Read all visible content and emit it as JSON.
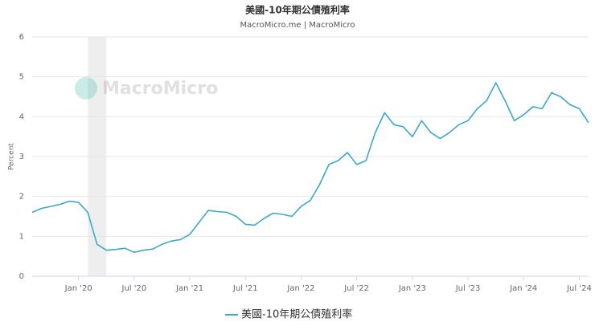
{
  "chart_data": {
    "type": "line",
    "title": "美國-10年期公債殖利率",
    "subtitle": "MacroMicro.me | MacroMicro",
    "watermark": "MacroMicro",
    "y_label": "Percent",
    "x": [
      "2019-08",
      "2019-09",
      "2019-10",
      "2019-11",
      "2019-12",
      "2020-01",
      "2020-02",
      "2020-03",
      "2020-04",
      "2020-05",
      "2020-06",
      "2020-07",
      "2020-08",
      "2020-09",
      "2020-10",
      "2020-11",
      "2020-12",
      "2021-01",
      "2021-02",
      "2021-03",
      "2021-04",
      "2021-05",
      "2021-06",
      "2021-07",
      "2021-08",
      "2021-09",
      "2021-10",
      "2021-11",
      "2021-12",
      "2022-01",
      "2022-02",
      "2022-03",
      "2022-04",
      "2022-05",
      "2022-06",
      "2022-07",
      "2022-08",
      "2022-09",
      "2022-10",
      "2022-11",
      "2022-12",
      "2023-01",
      "2023-02",
      "2023-03",
      "2023-04",
      "2023-05",
      "2023-06",
      "2023-07",
      "2023-08",
      "2023-09",
      "2023-10",
      "2023-11",
      "2023-12",
      "2024-01",
      "2024-02",
      "2024-03",
      "2024-04",
      "2024-05",
      "2024-06",
      "2024-07",
      "2024-08"
    ],
    "series": [
      {
        "name": "美國-10年期公債殖利率",
        "color": "#3aa9c9",
        "values": [
          1.6,
          1.7,
          1.75,
          1.8,
          1.88,
          1.85,
          1.6,
          0.8,
          0.65,
          0.67,
          0.7,
          0.6,
          0.65,
          0.68,
          0.8,
          0.88,
          0.92,
          1.05,
          1.35,
          1.65,
          1.62,
          1.6,
          1.5,
          1.3,
          1.28,
          1.45,
          1.58,
          1.55,
          1.5,
          1.75,
          1.9,
          2.3,
          2.8,
          2.9,
          3.1,
          2.8,
          2.9,
          3.6,
          4.1,
          3.8,
          3.75,
          3.5,
          3.9,
          3.6,
          3.45,
          3.6,
          3.8,
          3.9,
          4.2,
          4.4,
          4.85,
          4.4,
          3.9,
          4.05,
          4.25,
          4.2,
          4.6,
          4.5,
          4.3,
          4.2,
          3.85
        ]
      }
    ],
    "shaded": [
      {
        "start": "2020-02",
        "end": "2020-04",
        "color": "#eeeeee"
      }
    ],
    "xlim": [
      "2019-08",
      "2024-08"
    ],
    "xticks": [
      {
        "value": "2020-01",
        "label": "Jan '20"
      },
      {
        "value": "2020-07",
        "label": "Jul '20"
      },
      {
        "value": "2021-01",
        "label": "Jan '21"
      },
      {
        "value": "2021-07",
        "label": "Jul '21"
      },
      {
        "value": "2022-01",
        "label": "Jan '22"
      },
      {
        "value": "2022-07",
        "label": "Jul '22"
      },
      {
        "value": "2023-01",
        "label": "Jan '23"
      },
      {
        "value": "2023-07",
        "label": "Jul '23"
      },
      {
        "value": "2024-01",
        "label": "Jan '24"
      },
      {
        "value": "2024-07",
        "label": "Jul '24"
      }
    ],
    "ylim": [
      0,
      6
    ],
    "yticks": [
      0,
      1,
      2,
      3,
      4,
      5,
      6
    ],
    "grid": true,
    "legend": "bottom"
  }
}
